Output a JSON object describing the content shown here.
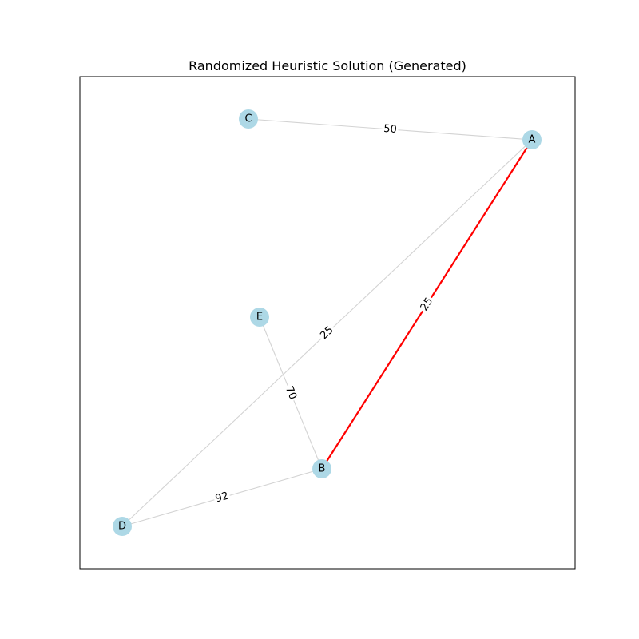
{
  "title": "Randomized Heuristic Solution (Generated)",
  "colors": {
    "node_fill": "#add8e6",
    "edge_default": "#d3d3d3",
    "edge_highlight": "#ff0000",
    "frame": "#000000",
    "label_bg": "#ffffff"
  },
  "nodes": [
    {
      "id": "A",
      "label": "A"
    },
    {
      "id": "B",
      "label": "B"
    },
    {
      "id": "C",
      "label": "C"
    },
    {
      "id": "D",
      "label": "D"
    },
    {
      "id": "E",
      "label": "E"
    }
  ],
  "edges": [
    {
      "source": "C",
      "target": "A",
      "weight": "50",
      "highlighted": false
    },
    {
      "source": "A",
      "target": "D",
      "weight": "25",
      "highlighted": false
    },
    {
      "source": "E",
      "target": "B",
      "weight": "70",
      "highlighted": false
    },
    {
      "source": "D",
      "target": "B",
      "weight": "92",
      "highlighted": false
    },
    {
      "source": "A",
      "target": "B",
      "weight": "25",
      "highlighted": true
    }
  ]
}
